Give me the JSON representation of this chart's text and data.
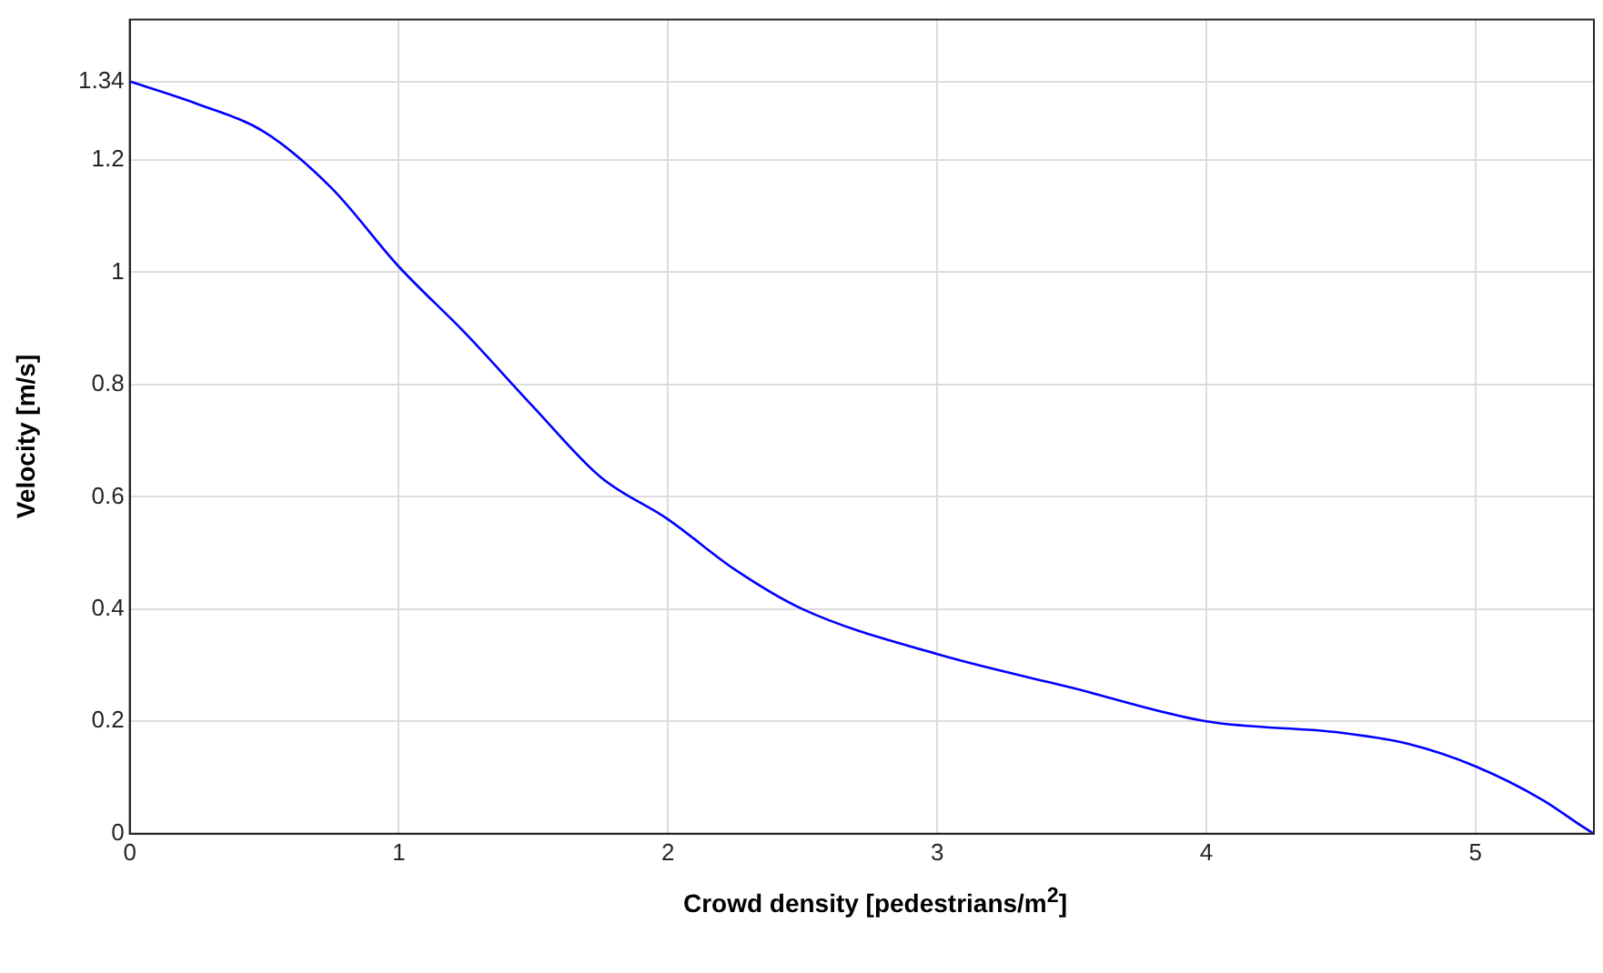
{
  "chart_data": {
    "type": "line",
    "xlabel": "Crowd density [pedestrians/m$^{2}$]",
    "ylabel": "Velocity [m/s]",
    "x": [
      0,
      0.25,
      0.5,
      0.75,
      1,
      1.25,
      1.5,
      1.75,
      2,
      2.25,
      2.5,
      3,
      3.5,
      4,
      4.5,
      4.75,
      5,
      5.25,
      5.4,
      5.44
    ],
    "series": [
      {
        "color": "#0000ff",
        "values": [
          1.34,
          1.3,
          1.25,
          1.15,
          1.01,
          0.89,
          0.76,
          0.635,
          0.56,
          0.47,
          0.4,
          0.32,
          0.26,
          0.2,
          0.18,
          0.16,
          0.12,
          0.06,
          0.012,
          0
        ]
      }
    ],
    "xlim": [
      0,
      5.44
    ],
    "ylim": [
      0,
      1.45
    ],
    "xticks": [
      0,
      1,
      2,
      3,
      4,
      5
    ],
    "yticks": [
      0,
      0.2,
      0.4,
      0.6,
      0.8,
      1,
      1.2,
      1.34
    ],
    "grid": true,
    "legend": false,
    "marker": "none",
    "line_style": "solid"
  }
}
